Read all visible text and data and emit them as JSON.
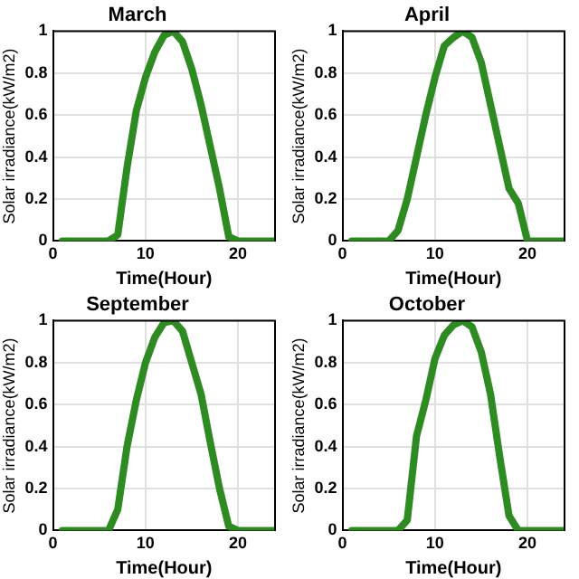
{
  "chart_data": [
    {
      "type": "line",
      "title": "March",
      "xlabel": "Time(Hour)",
      "ylabel": "Solar irradiance(kW/m2)",
      "x": [
        1,
        2,
        3,
        4,
        5,
        6,
        7,
        8,
        9,
        10,
        11,
        12,
        13,
        14,
        15,
        16,
        17,
        18,
        19,
        20,
        21,
        22,
        23,
        24
      ],
      "series": [
        {
          "color": "#2e8b22",
          "values": [
            0,
            0,
            0,
            0,
            0,
            0,
            0.03,
            0.35,
            0.62,
            0.78,
            0.9,
            0.98,
            1.0,
            0.95,
            0.82,
            0.65,
            0.45,
            0.25,
            0.02,
            0,
            0,
            0,
            0,
            0
          ]
        }
      ],
      "xlim": [
        0,
        24
      ],
      "ylim": [
        0,
        1
      ],
      "xticks": [
        0,
        10,
        20
      ],
      "yticks": [
        0,
        0.2,
        0.4,
        0.6,
        0.8,
        1
      ],
      "grid": true,
      "marker": "none",
      "line_style": "solid"
    },
    {
      "type": "line",
      "title": "April",
      "xlabel": "Time(Hour)",
      "ylabel": "Solar irradiance(kW/m2)",
      "x": [
        1,
        2,
        3,
        4,
        5,
        6,
        7,
        8,
        9,
        10,
        11,
        12,
        13,
        14,
        15,
        16,
        17,
        18,
        19,
        20,
        21,
        22,
        23,
        24
      ],
      "series": [
        {
          "color": "#2e8b22",
          "values": [
            0,
            0,
            0,
            0,
            0,
            0.05,
            0.2,
            0.4,
            0.6,
            0.78,
            0.93,
            0.97,
            1.0,
            0.97,
            0.85,
            0.65,
            0.45,
            0.25,
            0.18,
            0,
            0,
            0,
            0,
            0
          ]
        }
      ],
      "xlim": [
        0,
        24
      ],
      "ylim": [
        0,
        1
      ],
      "xticks": [
        0,
        10,
        20
      ],
      "yticks": [
        0,
        0.2,
        0.4,
        0.6,
        0.8,
        1
      ],
      "grid": true,
      "marker": "none",
      "line_style": "solid"
    },
    {
      "type": "line",
      "title": "September",
      "xlabel": "Time(Hour)",
      "ylabel": "Solar irradiance(kW/m2)",
      "x": [
        1,
        2,
        3,
        4,
        5,
        6,
        7,
        8,
        9,
        10,
        11,
        12,
        13,
        14,
        15,
        16,
        17,
        18,
        19,
        20,
        21,
        22,
        23,
        24
      ],
      "series": [
        {
          "color": "#2e8b22",
          "values": [
            0,
            0,
            0,
            0,
            0,
            0,
            0.1,
            0.4,
            0.62,
            0.8,
            0.92,
            0.99,
            1.0,
            0.95,
            0.8,
            0.65,
            0.42,
            0.2,
            0.02,
            0,
            0,
            0,
            0,
            0
          ]
        }
      ],
      "xlim": [
        0,
        24
      ],
      "ylim": [
        0,
        1
      ],
      "xticks": [
        0,
        10,
        20
      ],
      "yticks": [
        0,
        0.2,
        0.4,
        0.6,
        0.8,
        1
      ],
      "grid": true,
      "marker": "none",
      "line_style": "solid"
    },
    {
      "type": "line",
      "title": "October",
      "xlabel": "Time(Hour)",
      "ylabel": "Solar irradiance(kW/m2)",
      "x": [
        1,
        2,
        3,
        4,
        5,
        6,
        7,
        8,
        9,
        10,
        11,
        12,
        13,
        14,
        15,
        16,
        17,
        18,
        19,
        20,
        21,
        22,
        23,
        24
      ],
      "series": [
        {
          "color": "#2e8b22",
          "values": [
            0,
            0,
            0,
            0,
            0,
            0,
            0.05,
            0.45,
            0.62,
            0.82,
            0.93,
            0.98,
            1.0,
            0.97,
            0.85,
            0.65,
            0.35,
            0.07,
            0,
            0,
            0,
            0,
            0,
            0
          ]
        }
      ],
      "xlim": [
        0,
        24
      ],
      "ylim": [
        0,
        1
      ],
      "xticks": [
        0,
        10,
        20
      ],
      "yticks": [
        0,
        0.2,
        0.4,
        0.6,
        0.8,
        1
      ],
      "grid": true,
      "marker": "none",
      "line_style": "solid"
    }
  ]
}
